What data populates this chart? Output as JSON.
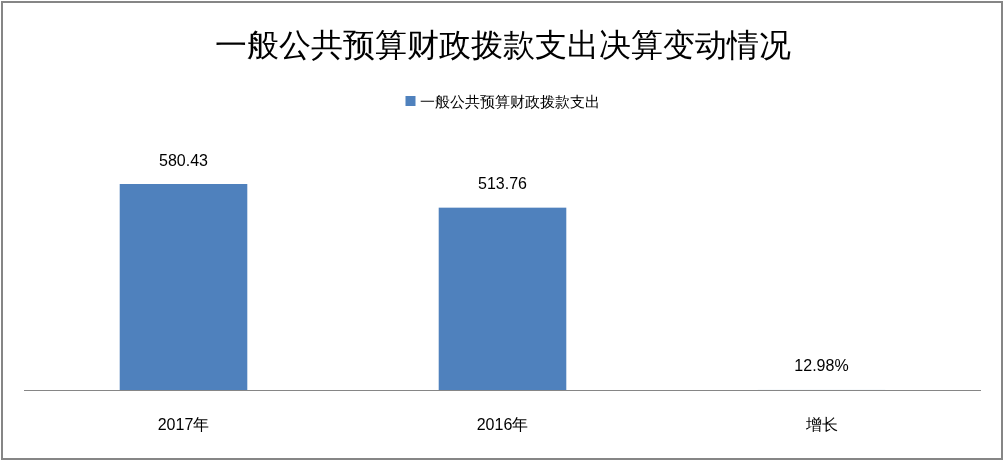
{
  "chart_data": {
    "type": "bar",
    "title": "一般公共预算财政拨款支出决算变动情况",
    "categories": [
      "2017年",
      "2016年",
      "增长"
    ],
    "series": [
      {
        "name": "一般公共预算财政拨款支出",
        "color": "#4f81bd",
        "values": [
          580.43,
          513.76,
          0.1298
        ],
        "value_labels": [
          "580.43",
          "513.76",
          "12.98%"
        ]
      }
    ],
    "legend": "top"
  }
}
